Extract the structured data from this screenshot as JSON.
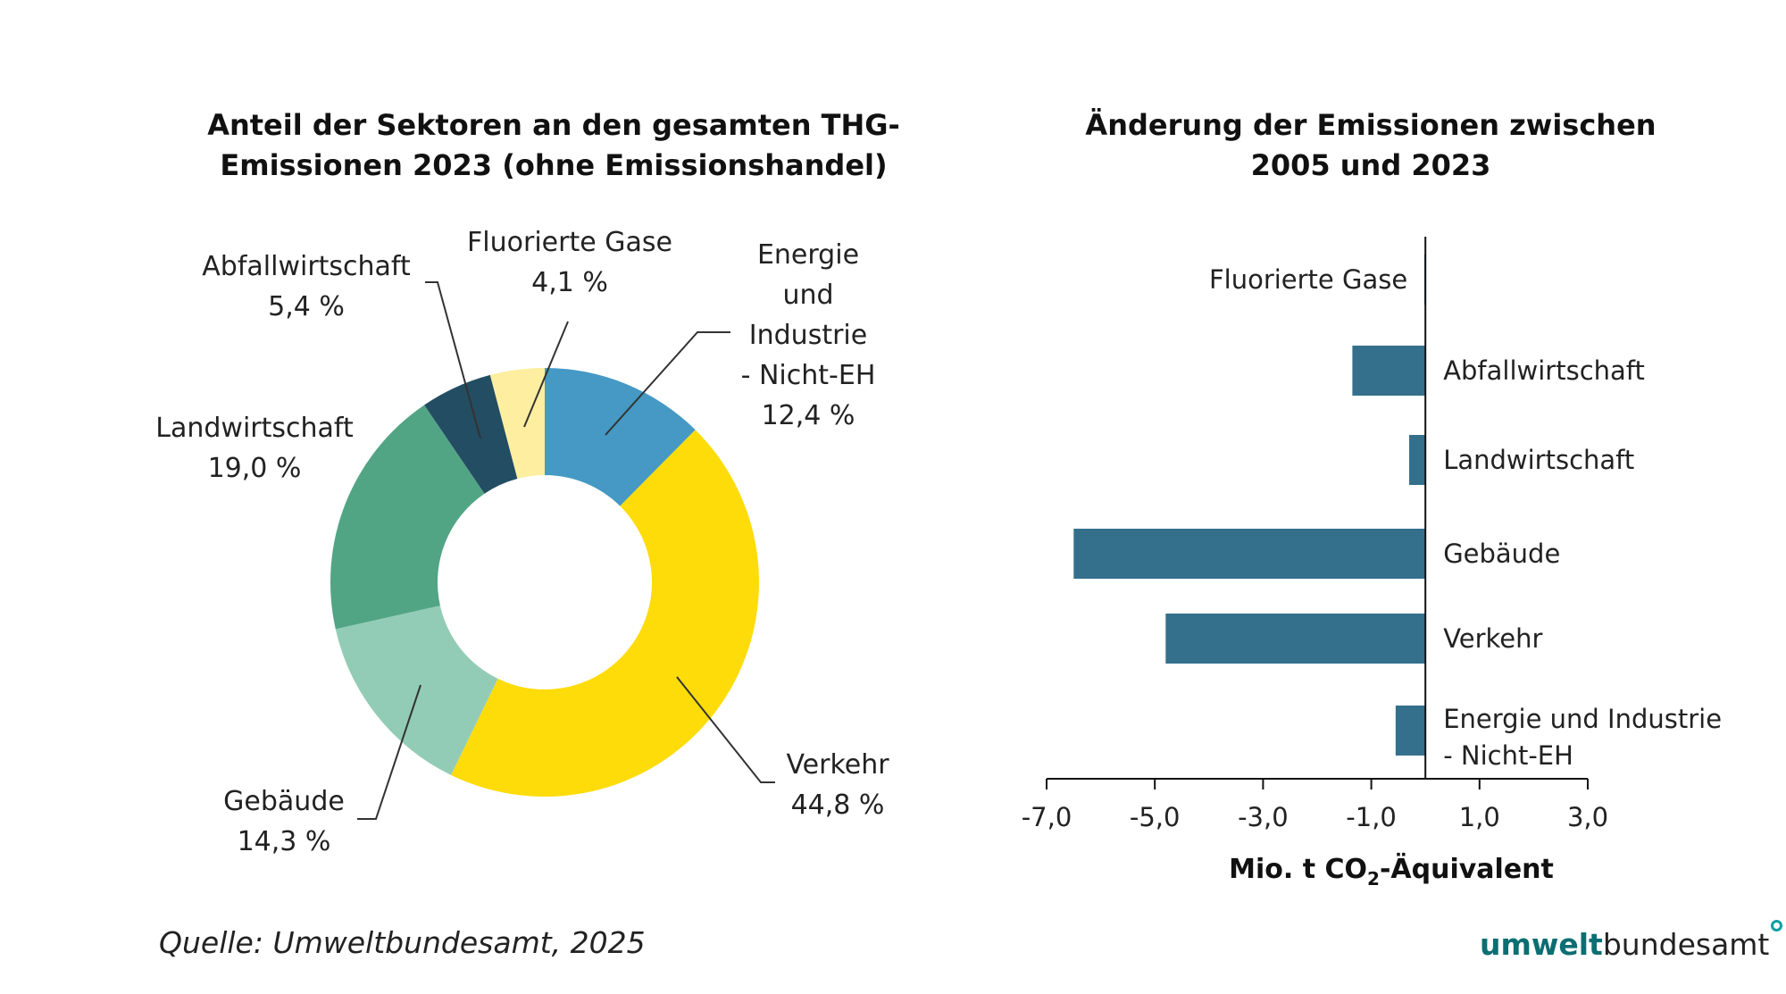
{
  "chart_data": [
    {
      "type": "pie",
      "donut": true,
      "title_lines": [
        "Anteil der Sektoren an den gesamten THG-",
        "Emissionen 2023 (ohne Emissionshandel)"
      ],
      "slices": [
        {
          "label_lines": [
            "Energie",
            "und",
            "Industrie",
            "- Nicht-EH"
          ],
          "value": 12.4,
          "value_label": "12,4 %",
          "color": "#4599c4"
        },
        {
          "label_lines": [
            "Verkehr"
          ],
          "value": 44.8,
          "value_label": "44,8 %",
          "color": "#fedc0a"
        },
        {
          "label_lines": [
            "Gebäude"
          ],
          "value": 14.3,
          "value_label": "14,3 %",
          "color": "#93ccb6"
        },
        {
          "label_lines": [
            "Landwirtschaft"
          ],
          "value": 19.0,
          "value_label": "19,0 %",
          "color": "#52a584"
        },
        {
          "label_lines": [
            "Abfallwirtschaft"
          ],
          "value": 5.4,
          "value_label": "5,4 %",
          "color": "#234d62"
        },
        {
          "label_lines": [
            "Fluorierte Gase"
          ],
          "value": 4.1,
          "value_label": "4,1 %",
          "color": "#fdeea0"
        }
      ]
    },
    {
      "type": "bar",
      "orientation": "horizontal",
      "title_lines": [
        "Änderung der Emissionen zwischen",
        "2005 und 2023"
      ],
      "categories": [
        {
          "label_lines": [
            "Fluorierte Gase"
          ]
        },
        {
          "label_lines": [
            "Abfallwirtschaft"
          ]
        },
        {
          "label_lines": [
            "Landwirtschaft"
          ]
        },
        {
          "label_lines": [
            "Gebäude"
          ]
        },
        {
          "label_lines": [
            "Verkehr"
          ]
        },
        {
          "label_lines": [
            "Energie und Industrie",
            "- Nicht-EH"
          ]
        }
      ],
      "values": [
        -0.02,
        -1.35,
        -0.3,
        -6.5,
        -4.8,
        -0.55
      ],
      "bar_color": "#34708c",
      "xlim": [
        -7.0,
        3.0
      ],
      "xticks": [
        -7.0,
        -5.0,
        -3.0,
        -1.0,
        1.0,
        3.0
      ],
      "xtick_labels": [
        "-7,0",
        "-5,0",
        "-3,0",
        "-1,0",
        "1,0",
        "3,0"
      ],
      "xlabel_prefix": "Mio. t CO",
      "xlabel_sub": "2",
      "xlabel_suffix": "-Äquivalent"
    }
  ],
  "source": "Quelle: Umweltbundesamt, 2025",
  "logo": {
    "part1": "umwelt",
    "part2": "bundesamt"
  }
}
